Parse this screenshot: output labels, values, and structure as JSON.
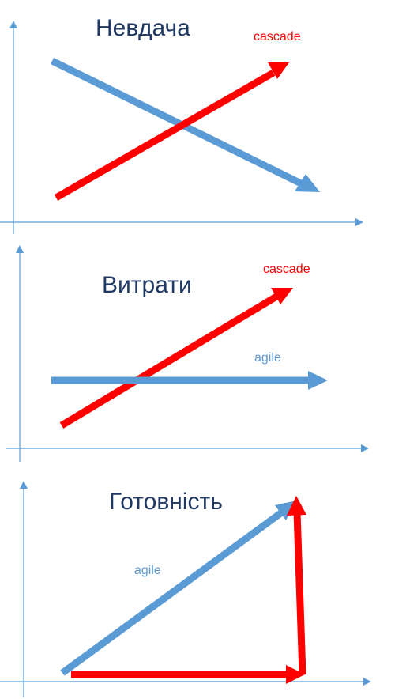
{
  "colors": {
    "axis": "#5b9bd5",
    "agile": "#5b9bd5",
    "cascade": "#ff0000",
    "title": "#1f3864"
  },
  "panels": [
    {
      "title": "Невдача",
      "cascade_label": "cascade",
      "agile_label": ""
    },
    {
      "title": "Витрати",
      "cascade_label": "cascade",
      "agile_label": "agile"
    },
    {
      "title": "Готовність",
      "cascade_label": "",
      "agile_label": "agile"
    }
  ]
}
